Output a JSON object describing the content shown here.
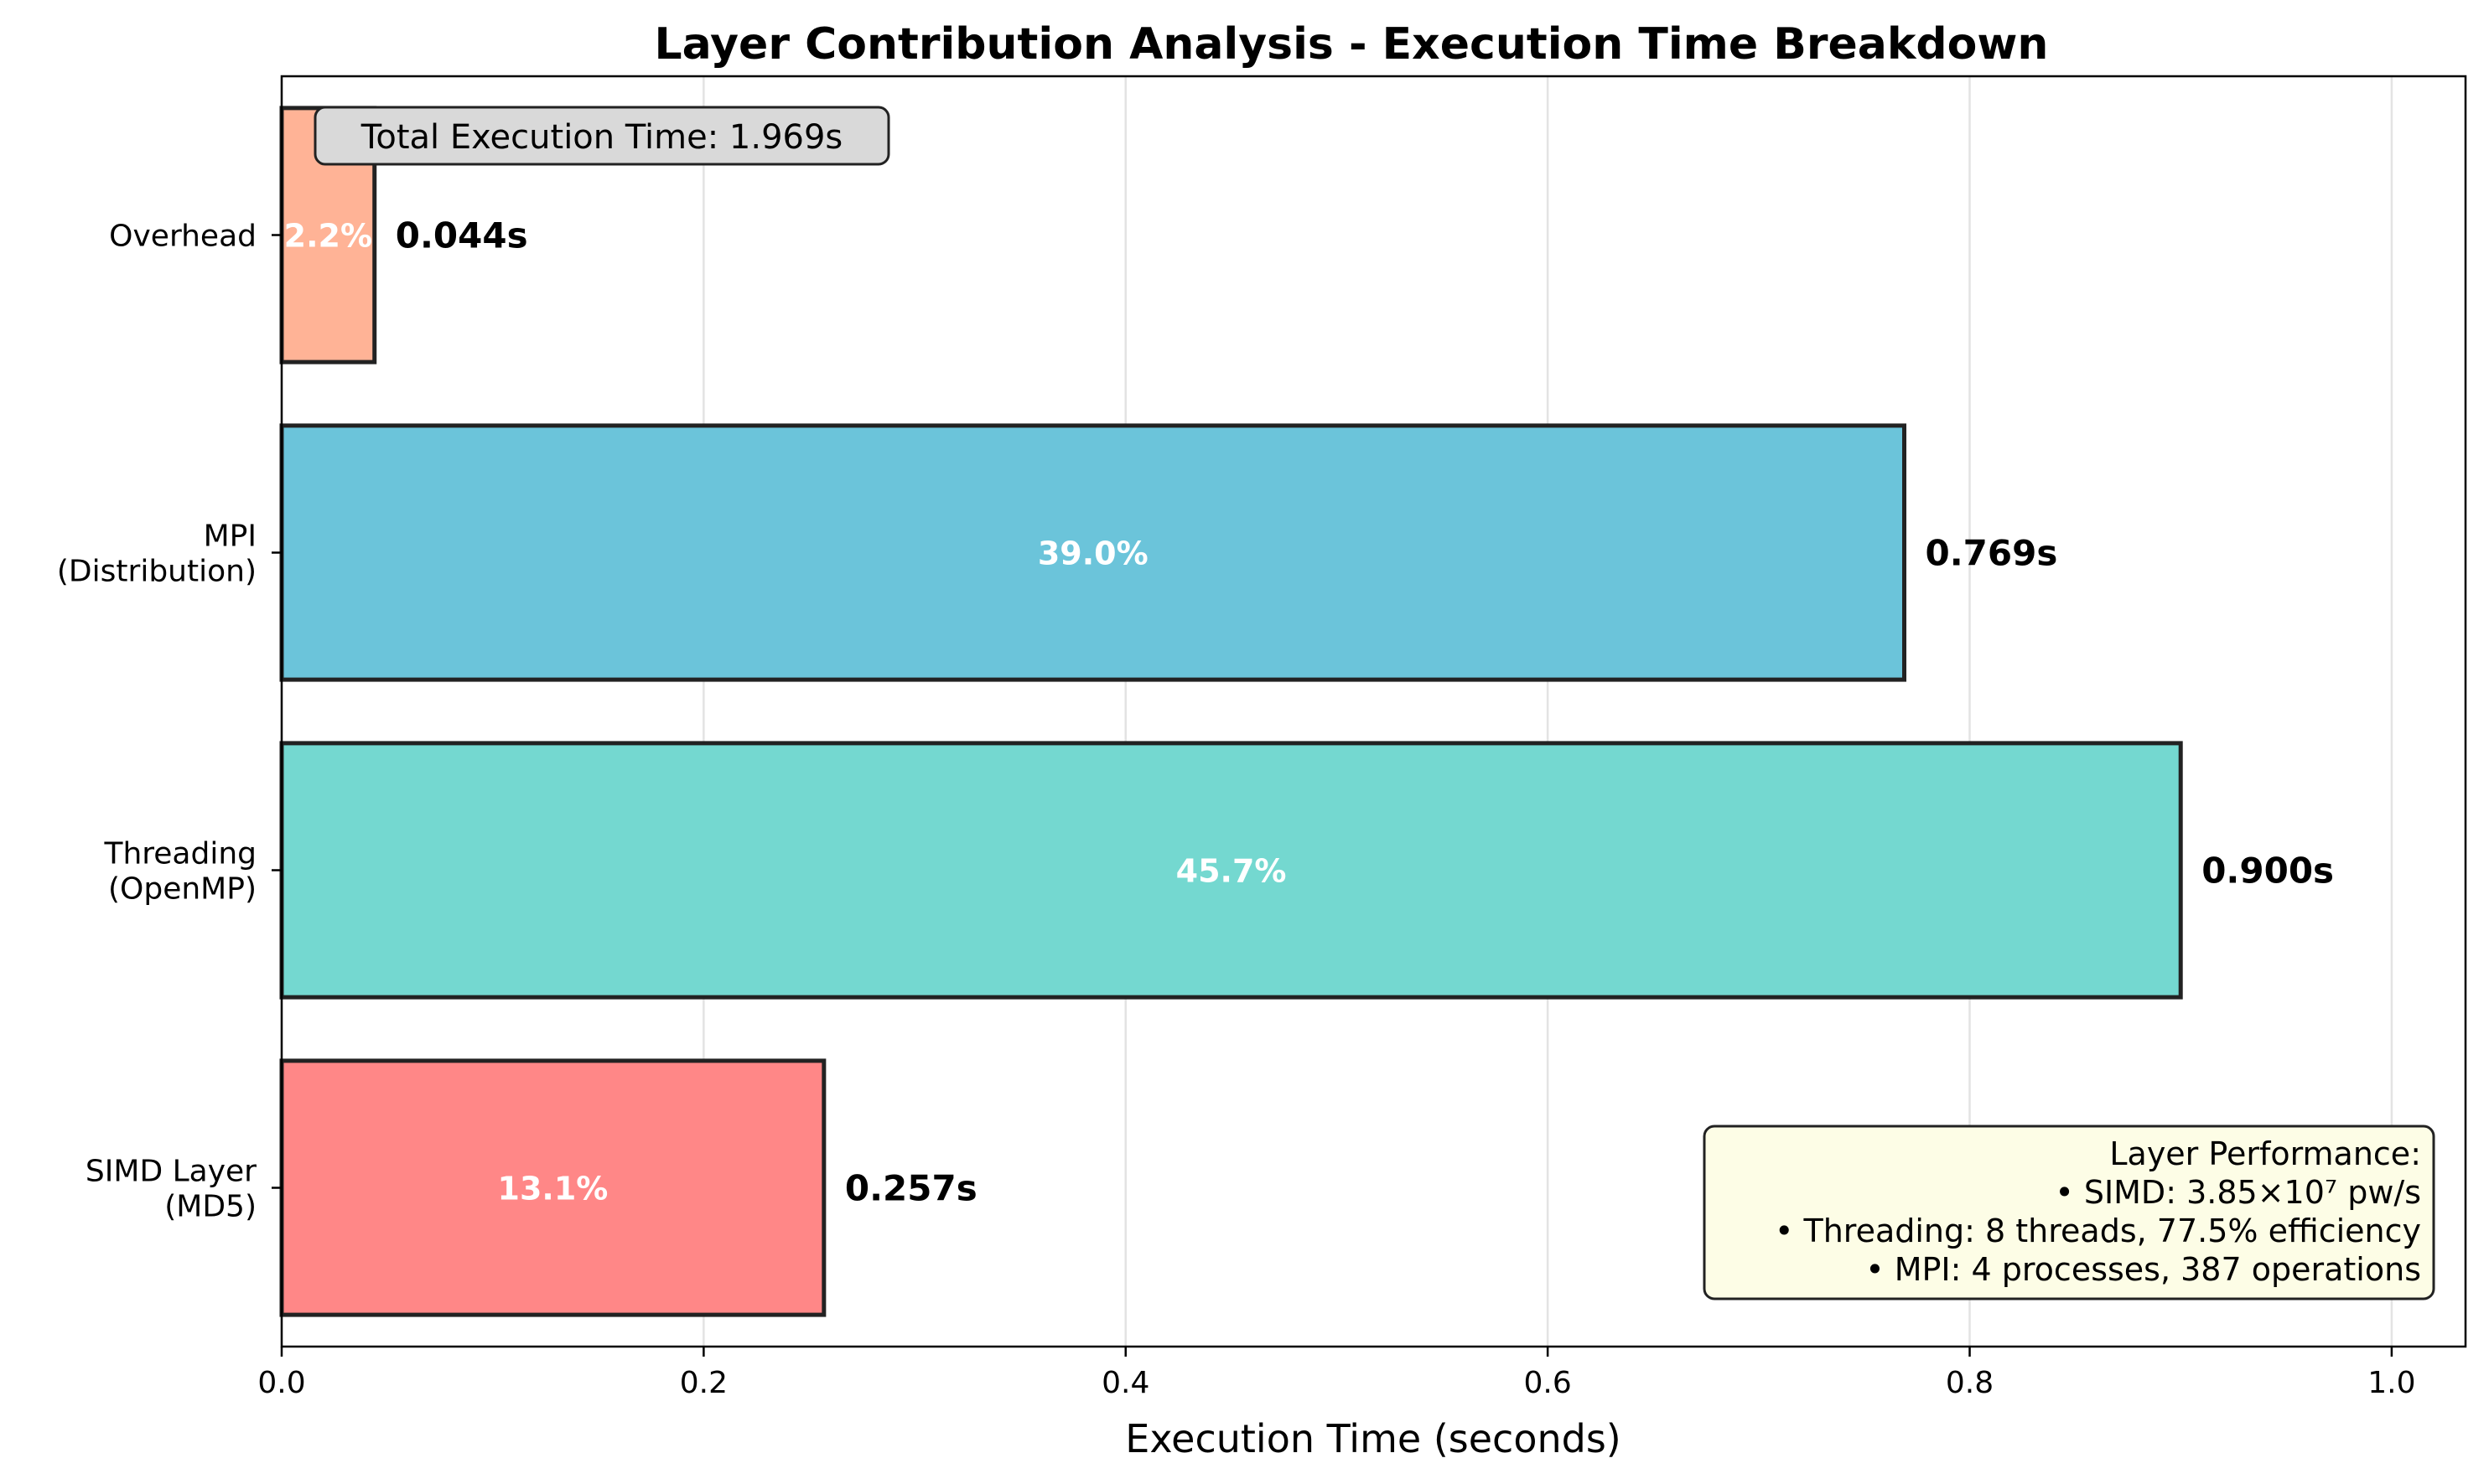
{
  "chart_data": {
    "type": "bar",
    "orientation": "horizontal",
    "title": "Layer Contribution Analysis - Execution Time Breakdown",
    "xlabel": "Execution Time (seconds)",
    "ylabel": "",
    "xlim": [
      0.0,
      1.035
    ],
    "x_ticks": [
      0.0,
      0.2,
      0.4,
      0.6,
      0.8,
      1.0
    ],
    "x_tick_labels": [
      "0.0",
      "0.2",
      "0.4",
      "0.6",
      "0.8",
      "1.0"
    ],
    "grid": "vertical",
    "categories": [
      [
        "SIMD Layer",
        "(MD5)"
      ],
      [
        "Threading",
        "(OpenMP)"
      ],
      [
        "MPI",
        "(Distribution)"
      ],
      [
        "Overhead"
      ]
    ],
    "values": [
      0.257,
      0.9,
      0.769,
      0.044
    ],
    "value_labels": [
      "0.257s",
      "0.900s",
      "0.769s",
      "0.044s"
    ],
    "percent_labels": [
      "13.1%",
      "45.7%",
      "39.0%",
      "2.2%"
    ],
    "colors": [
      "#ff8787",
      "#74d8d0",
      "#6bc4da",
      "#ffb396"
    ],
    "edge_color": "#222222",
    "total_box": "Total Execution Time: 1.969s",
    "performance_box": [
      "Layer Performance:",
      "• SIMD: 3.85×10⁷ pw/s",
      "• Threading: 8 threads, 77.5% efficiency",
      "• MPI: 4 processes, 387 operations"
    ]
  }
}
